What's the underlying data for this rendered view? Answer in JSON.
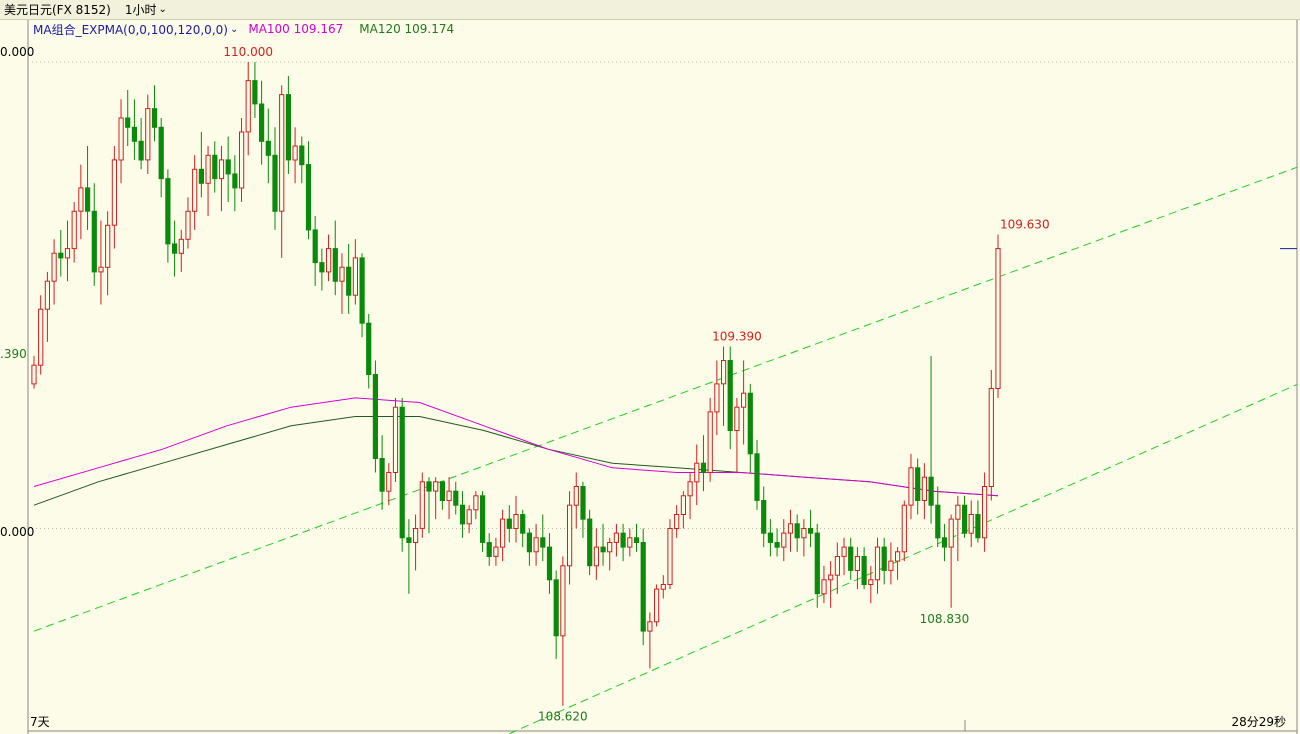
{
  "header": {
    "symbol": "美元日元(FX 8152)",
    "period": "1小时",
    "period_chevron_icon": "chevron-down-icon"
  },
  "legend": {
    "indicator": "MA组合_EXPMA(0,0,100,120,0,0)",
    "indicator_chevron_icon": "chevron-down-icon",
    "ma100": "MA100 109.167",
    "ma120": "MA120 109.174"
  },
  "axis": {
    "top_label": "0.000",
    "mid_label": ".390",
    "low_label": "0.000"
  },
  "footer": {
    "left": "7天",
    "right": "28分29秒"
  },
  "colors": {
    "background": "#FDFCE8",
    "up": "#D21F1F",
    "down": "#0A8A0A",
    "ma100": "#D400D4",
    "ma120": "#1F5A1F",
    "channel": "#22CC22",
    "annotation_high": "#D21F1F",
    "annotation_low": "#1F7A1F"
  },
  "chart_data": {
    "type": "candlestick",
    "title": "美元日元(FX 8152)",
    "period": "1小时",
    "y_range": [
      108.568,
      110.09
    ],
    "annotations": [
      {
        "text": "110.000",
        "value": 110.0,
        "kind": "high"
      },
      {
        "text": "109.630",
        "value": 109.63,
        "kind": "high"
      },
      {
        "text": "109.390",
        "value": 109.39,
        "kind": "high"
      },
      {
        "text": "108.830",
        "value": 108.83,
        "kind": "low"
      },
      {
        "text": "108.620",
        "value": 108.62,
        "kind": "low"
      }
    ],
    "ohlc": [
      [
        109.31,
        109.37,
        109.3,
        109.35
      ],
      [
        109.35,
        109.5,
        109.33,
        109.47
      ],
      [
        109.47,
        109.55,
        109.4,
        109.53
      ],
      [
        109.53,
        109.62,
        109.48,
        109.59
      ],
      [
        109.59,
        109.64,
        109.54,
        109.58
      ],
      [
        109.58,
        109.66,
        109.53,
        109.6
      ],
      [
        109.6,
        109.7,
        109.57,
        109.68
      ],
      [
        109.68,
        109.78,
        109.62,
        109.73
      ],
      [
        109.73,
        109.82,
        109.64,
        109.68
      ],
      [
        109.68,
        109.74,
        109.52,
        109.55
      ],
      [
        109.55,
        109.66,
        109.48,
        109.56
      ],
      [
        109.56,
        109.68,
        109.5,
        109.65
      ],
      [
        109.65,
        109.82,
        109.6,
        109.79
      ],
      [
        109.79,
        109.92,
        109.74,
        109.88
      ],
      [
        109.88,
        109.94,
        109.82,
        109.86
      ],
      [
        109.86,
        109.92,
        109.79,
        109.83
      ],
      [
        109.83,
        109.88,
        109.77,
        109.79
      ],
      [
        109.79,
        109.93,
        109.76,
        109.9
      ],
      [
        109.9,
        109.95,
        109.83,
        109.86
      ],
      [
        109.86,
        109.88,
        109.71,
        109.75
      ],
      [
        109.75,
        109.77,
        109.57,
        109.61
      ],
      [
        109.61,
        109.66,
        109.54,
        109.59
      ],
      [
        109.59,
        109.64,
        109.55,
        109.62
      ],
      [
        109.62,
        109.71,
        109.6,
        109.68
      ],
      [
        109.68,
        109.8,
        109.64,
        109.77
      ],
      [
        109.77,
        109.85,
        109.71,
        109.74
      ],
      [
        109.74,
        109.82,
        109.67,
        109.8
      ],
      [
        109.8,
        109.83,
        109.72,
        109.75
      ],
      [
        109.75,
        109.82,
        109.68,
        109.79
      ],
      [
        109.79,
        109.84,
        109.7,
        109.76
      ],
      [
        109.76,
        109.8,
        109.68,
        109.73
      ],
      [
        109.73,
        109.88,
        109.7,
        109.85
      ],
      [
        109.85,
        110.0,
        109.8,
        109.96
      ],
      [
        109.96,
        110.0,
        109.88,
        109.91
      ],
      [
        109.91,
        109.96,
        109.78,
        109.83
      ],
      [
        109.83,
        109.9,
        109.74,
        109.8
      ],
      [
        109.8,
        109.86,
        109.64,
        109.68
      ],
      [
        109.68,
        109.95,
        109.58,
        109.93
      ],
      [
        109.93,
        109.97,
        109.76,
        109.79
      ],
      [
        109.79,
        109.86,
        109.74,
        109.82
      ],
      [
        109.82,
        109.84,
        109.74,
        109.78
      ],
      [
        109.78,
        109.83,
        109.62,
        109.64
      ],
      [
        109.64,
        109.67,
        109.52,
        109.57
      ],
      [
        109.57,
        109.6,
        109.51,
        109.55
      ],
      [
        109.55,
        109.63,
        109.53,
        109.6
      ],
      [
        109.6,
        109.66,
        109.5,
        109.53
      ],
      [
        109.53,
        109.59,
        109.46,
        109.56
      ],
      [
        109.56,
        109.61,
        109.46,
        109.5
      ],
      [
        109.5,
        109.62,
        109.48,
        109.58
      ],
      [
        109.58,
        109.59,
        109.41,
        109.44
      ],
      [
        109.44,
        109.46,
        109.3,
        109.33
      ],
      [
        109.33,
        109.36,
        109.12,
        109.15
      ],
      [
        109.15,
        109.2,
        109.04,
        109.08
      ],
      [
        109.08,
        109.14,
        109.05,
        109.12
      ],
      [
        109.12,
        109.28,
        109.1,
        109.26
      ],
      [
        109.26,
        109.28,
        108.95,
        108.98
      ],
      [
        108.98,
        109.02,
        108.86,
        108.97
      ],
      [
        108.97,
        109.03,
        108.91,
        109.0
      ],
      [
        109.0,
        109.12,
        108.98,
        109.1
      ],
      [
        109.1,
        109.11,
        108.99,
        109.08
      ],
      [
        109.08,
        109.11,
        109.02,
        109.1
      ],
      [
        109.1,
        109.1,
        109.04,
        109.06
      ],
      [
        109.06,
        109.11,
        109.02,
        109.08
      ],
      [
        109.08,
        109.1,
        109.03,
        109.05
      ],
      [
        109.05,
        109.08,
        108.98,
        109.01
      ],
      [
        109.01,
        109.05,
        108.99,
        109.04
      ],
      [
        109.04,
        109.08,
        109.02,
        109.07
      ],
      [
        109.07,
        109.08,
        108.95,
        108.97
      ],
      [
        108.97,
        108.99,
        108.92,
        108.94
      ],
      [
        108.94,
        108.98,
        108.92,
        108.96
      ],
      [
        108.96,
        109.04,
        108.93,
        109.02
      ],
      [
        109.02,
        109.05,
        108.97,
        109.0
      ],
      [
        109.0,
        109.07,
        108.97,
        109.03
      ],
      [
        109.03,
        109.04,
        108.96,
        108.99
      ],
      [
        108.99,
        109.0,
        108.92,
        108.95
      ],
      [
        108.95,
        109.01,
        108.92,
        108.98
      ],
      [
        108.98,
        109.03,
        108.93,
        108.96
      ],
      [
        108.96,
        108.99,
        108.86,
        108.89
      ],
      [
        108.89,
        108.91,
        108.72,
        108.77
      ],
      [
        108.77,
        108.94,
        108.62,
        108.92
      ],
      [
        108.92,
        109.08,
        108.88,
        109.05
      ],
      [
        109.05,
        109.12,
        109.0,
        109.09
      ],
      [
        109.09,
        109.1,
        108.98,
        109.02
      ],
      [
        109.02,
        109.04,
        108.9,
        108.92
      ],
      [
        108.92,
        109.0,
        108.89,
        108.96
      ],
      [
        108.96,
        109.01,
        108.92,
        108.95
      ],
      [
        108.95,
        108.98,
        108.91,
        108.97
      ],
      [
        108.97,
        109.01,
        108.94,
        108.99
      ],
      [
        108.99,
        109.01,
        108.93,
        108.96
      ],
      [
        108.96,
        109.0,
        108.94,
        108.98
      ],
      [
        108.98,
        109.01,
        108.95,
        108.97
      ],
      [
        108.97,
        109.0,
        108.75,
        108.78
      ],
      [
        108.78,
        108.82,
        108.7,
        108.8
      ],
      [
        108.8,
        108.88,
        108.79,
        108.87
      ],
      [
        108.87,
        108.9,
        108.85,
        108.88
      ],
      [
        108.88,
        109.02,
        108.87,
        109.0
      ],
      [
        109.0,
        109.05,
        108.98,
        109.03
      ],
      [
        109.03,
        109.08,
        109.0,
        109.07
      ],
      [
        109.07,
        109.12,
        109.02,
        109.1
      ],
      [
        109.1,
        109.18,
        109.05,
        109.14
      ],
      [
        109.14,
        109.2,
        109.08,
        109.12
      ],
      [
        109.12,
        109.28,
        109.1,
        109.25
      ],
      [
        109.25,
        109.36,
        109.2,
        109.31
      ],
      [
        109.31,
        109.39,
        109.22,
        109.36
      ],
      [
        109.36,
        109.39,
        109.17,
        109.21
      ],
      [
        109.21,
        109.28,
        109.12,
        109.26
      ],
      [
        109.26,
        109.36,
        109.18,
        109.29
      ],
      [
        109.29,
        109.31,
        109.12,
        109.16
      ],
      [
        109.16,
        109.19,
        109.04,
        109.06
      ],
      [
        109.06,
        109.09,
        108.96,
        108.99
      ],
      [
        108.99,
        109.02,
        108.94,
        108.97
      ],
      [
        108.97,
        109.0,
        108.94,
        108.96
      ],
      [
        108.96,
        109.02,
        108.93,
        108.99
      ],
      [
        108.99,
        109.04,
        108.95,
        109.01
      ],
      [
        109.01,
        109.03,
        108.95,
        108.98
      ],
      [
        108.98,
        109.02,
        108.94,
        109.0
      ],
      [
        109.0,
        109.04,
        108.96,
        108.99
      ],
      [
        108.99,
        109.01,
        108.83,
        108.86
      ],
      [
        108.86,
        108.92,
        108.84,
        108.89
      ],
      [
        108.89,
        108.93,
        108.83,
        108.9
      ],
      [
        108.9,
        108.97,
        108.86,
        108.94
      ],
      [
        108.94,
        108.98,
        108.9,
        108.96
      ],
      [
        108.96,
        108.98,
        108.89,
        108.91
      ],
      [
        108.91,
        108.96,
        108.87,
        108.94
      ],
      [
        108.94,
        108.96,
        108.87,
        108.88
      ],
      [
        108.88,
        108.92,
        108.84,
        108.89
      ],
      [
        108.89,
        108.98,
        108.86,
        108.96
      ],
      [
        108.96,
        108.98,
        108.88,
        108.91
      ],
      [
        108.91,
        108.97,
        108.88,
        108.93
      ],
      [
        108.93,
        108.96,
        108.89,
        108.95
      ],
      [
        108.95,
        109.06,
        108.93,
        109.05
      ],
      [
        109.05,
        109.16,
        109.02,
        109.13
      ],
      [
        109.13,
        109.15,
        109.03,
        109.06
      ],
      [
        109.06,
        109.14,
        109.02,
        109.11
      ],
      [
        109.11,
        109.37,
        109.01,
        109.05
      ],
      [
        109.05,
        109.09,
        108.96,
        108.98
      ],
      [
        108.98,
        109.01,
        108.93,
        108.96
      ],
      [
        108.96,
        109.03,
        108.83,
        109.02
      ],
      [
        109.02,
        109.07,
        108.93,
        109.05
      ],
      [
        109.05,
        109.07,
        108.98,
        108.99
      ],
      [
        108.99,
        109.06,
        108.96,
        109.03
      ],
      [
        109.03,
        109.06,
        108.97,
        108.98
      ],
      [
        108.98,
        109.12,
        108.95,
        109.09
      ],
      [
        109.09,
        109.34,
        109.06,
        109.3
      ],
      [
        109.3,
        109.63,
        109.28,
        109.6
      ]
    ],
    "ma100": [
      109.09,
      109.13,
      109.17,
      109.22,
      109.26,
      109.28,
      109.27,
      109.22,
      109.17,
      109.13,
      109.12,
      109.12,
      109.11,
      109.1,
      109.08,
      109.07
    ],
    "ma120": [
      109.05,
      109.1,
      109.14,
      109.18,
      109.22,
      109.24,
      109.24,
      109.21,
      109.17,
      109.14,
      109.13,
      109.12,
      109.11,
      109.1,
      109.08,
      109.07
    ],
    "channel_upper": [
      [
        0,
        108.78
      ],
      [
        148,
        109.56
      ]
    ],
    "channel_lower": [
      [
        71,
        108.56
      ],
      [
        148,
        109.05
      ]
    ],
    "grid": {
      "y": [
        110.0,
        109.0
      ],
      "style": "dotted"
    }
  }
}
